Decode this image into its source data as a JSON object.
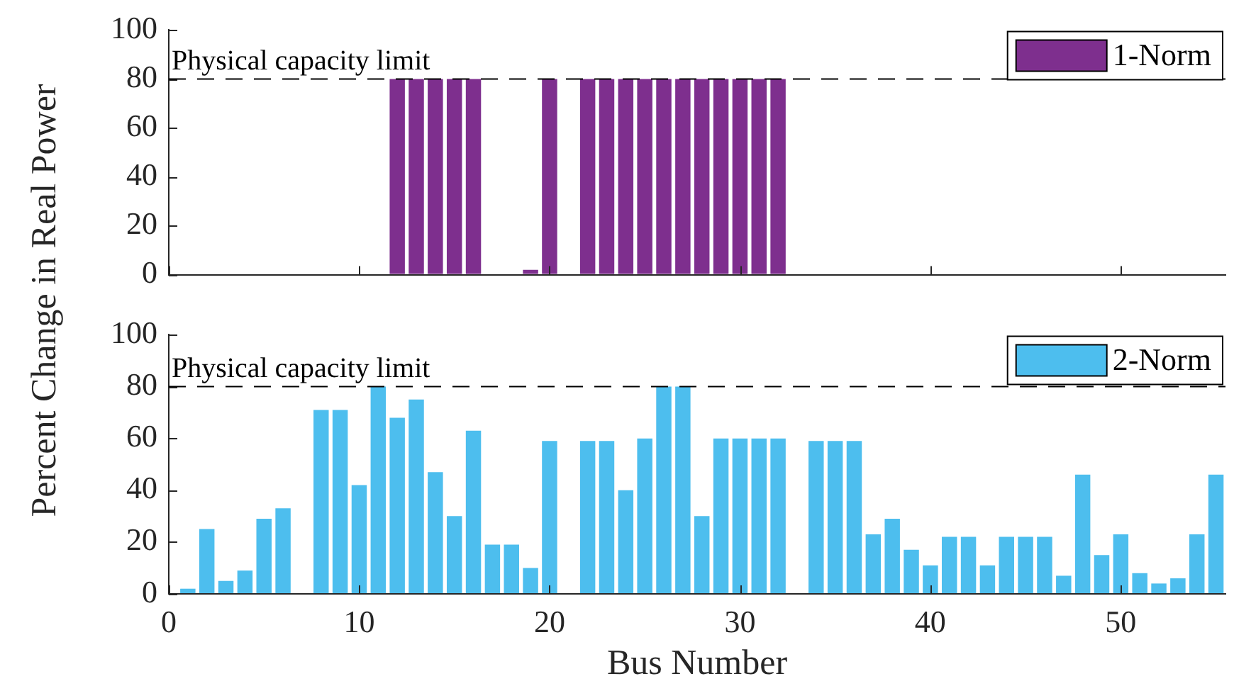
{
  "chart_data": [
    {
      "type": "bar",
      "ylabel": "Percent Change in Real Power",
      "x": [
        1,
        2,
        3,
        4,
        5,
        6,
        7,
        8,
        9,
        10,
        11,
        12,
        13,
        14,
        15,
        16,
        17,
        18,
        19,
        20,
        21,
        22,
        23,
        24,
        25,
        26,
        27,
        28,
        29,
        30,
        31,
        32,
        33,
        34,
        35,
        36,
        37,
        38,
        39,
        40,
        41,
        42,
        43,
        44,
        45,
        46,
        47,
        48,
        49,
        50,
        51,
        52,
        53,
        54,
        55
      ],
      "series": [
        {
          "name": "1-Norm",
          "color": "#7e2f8e",
          "values": [
            0,
            0,
            0,
            0,
            0,
            0,
            0,
            0,
            0,
            0,
            0,
            80,
            80,
            80,
            80,
            80,
            0,
            0,
            2,
            80,
            0,
            80,
            80,
            80,
            80,
            80,
            80,
            80,
            80,
            80,
            80,
            80,
            0,
            0,
            0,
            0,
            0,
            0,
            0,
            0,
            0,
            0,
            0,
            0,
            0,
            0,
            0,
            0,
            0,
            0,
            0,
            0,
            0,
            0,
            0
          ]
        }
      ],
      "xlim": [
        0,
        55.5
      ],
      "xticks": [
        0,
        10,
        20,
        30,
        40,
        50
      ],
      "ylim": [
        0,
        100
      ],
      "yticks": [
        0,
        20,
        40,
        60,
        80,
        100
      ],
      "ref_lines": [
        {
          "axis": "y",
          "value": 80,
          "label": "Physical capacity limit",
          "line_style": "dashed",
          "color": "#000000"
        }
      ],
      "legend": "top right",
      "grid": false,
      "tick_labels": "y"
    },
    {
      "type": "bar",
      "xlabel": "Bus Number",
      "x": [
        1,
        2,
        3,
        4,
        5,
        6,
        7,
        8,
        9,
        10,
        11,
        12,
        13,
        14,
        15,
        16,
        17,
        18,
        19,
        20,
        21,
        22,
        23,
        24,
        25,
        26,
        27,
        28,
        29,
        30,
        31,
        32,
        33,
        34,
        35,
        36,
        37,
        38,
        39,
        40,
        41,
        42,
        43,
        44,
        45,
        46,
        47,
        48,
        49,
        50,
        51,
        52,
        53,
        54,
        55
      ],
      "series": [
        {
          "name": "2-Norm",
          "color": "#4dbeee",
          "values": [
            2,
            25,
            5,
            9,
            29,
            33,
            0,
            71,
            71,
            42,
            80,
            68,
            75,
            47,
            30,
            63,
            19,
            19,
            10,
            59,
            0,
            59,
            59,
            40,
            60,
            80,
            80,
            30,
            60,
            60,
            60,
            60,
            0,
            59,
            59,
            59,
            23,
            29,
            17,
            11,
            22,
            22,
            11,
            22,
            22,
            22,
            7,
            46,
            15,
            23,
            8,
            4,
            6,
            23,
            46
          ]
        }
      ],
      "xlim": [
        0,
        55.5
      ],
      "xticks": [
        0,
        10,
        20,
        30,
        40,
        50
      ],
      "ylim": [
        0,
        100
      ],
      "yticks": [
        0,
        20,
        40,
        60,
        80,
        100
      ],
      "ref_lines": [
        {
          "axis": "y",
          "value": 80,
          "label": "Physical capacity limit",
          "line_style": "dashed",
          "color": "#000000"
        }
      ],
      "legend": "top right",
      "grid": false
    }
  ]
}
